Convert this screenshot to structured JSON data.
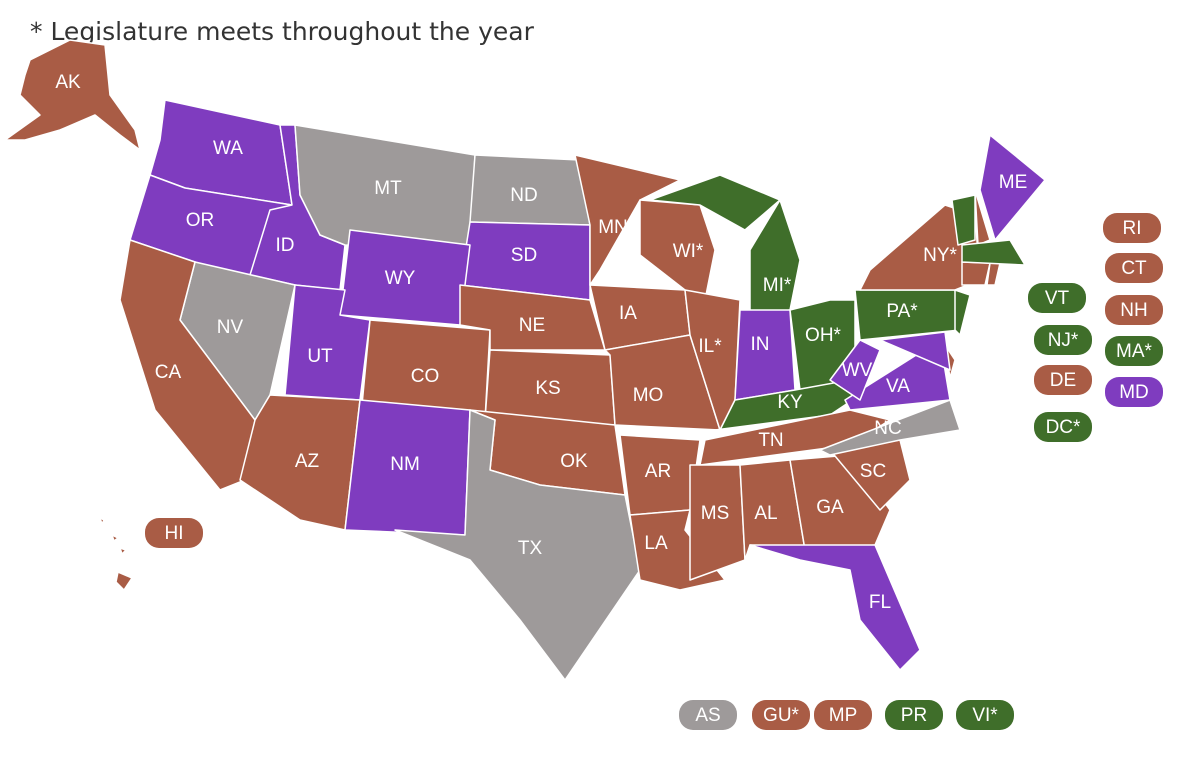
{
  "title": "* Legislature meets throughout the year",
  "states": [
    {
      "label": "AK",
      "color": "#a95c45"
    },
    {
      "label": "WA",
      "color": "#7f3cbf"
    },
    {
      "label": "OR",
      "color": "#7f3cbf"
    },
    {
      "label": "ID",
      "color": "#7f3cbf"
    },
    {
      "label": "MT",
      "color": "#9e9a9a"
    },
    {
      "label": "ND",
      "color": "#9e9a9a"
    },
    {
      "label": "SD",
      "color": "#7f3cbf"
    },
    {
      "label": "WY",
      "color": "#7f3cbf"
    },
    {
      "label": "NV",
      "color": "#9e9a9a"
    },
    {
      "label": "CA",
      "color": "#a95c45"
    },
    {
      "label": "UT",
      "color": "#7f3cbf"
    },
    {
      "label": "CO",
      "color": "#a95c45"
    },
    {
      "label": "AZ",
      "color": "#a95c45"
    },
    {
      "label": "NM",
      "color": "#7f3cbf"
    },
    {
      "label": "NE",
      "color": "#a95c45"
    },
    {
      "label": "KS",
      "color": "#a95c45"
    },
    {
      "label": "OK",
      "color": "#a95c45"
    },
    {
      "label": "TX",
      "color": "#9e9a9a"
    },
    {
      "label": "MN",
      "color": "#a95c45"
    },
    {
      "label": "IA",
      "color": "#a95c45"
    },
    {
      "label": "MO",
      "color": "#a95c45"
    },
    {
      "label": "AR",
      "color": "#a95c45"
    },
    {
      "label": "LA",
      "color": "#a95c45"
    },
    {
      "label": "WI*",
      "color": "#a95c45"
    },
    {
      "label": "IL*",
      "color": "#a95c45"
    },
    {
      "label": "MI*",
      "color": "#3f6e2a"
    },
    {
      "label": "IN",
      "color": "#7f3cbf"
    },
    {
      "label": "OH*",
      "color": "#3f6e2a"
    },
    {
      "label": "KY",
      "color": "#3f6e2a"
    },
    {
      "label": "TN",
      "color": "#a95c45"
    },
    {
      "label": "MS",
      "color": "#a95c45"
    },
    {
      "label": "AL",
      "color": "#a95c45"
    },
    {
      "label": "GA",
      "color": "#a95c45"
    },
    {
      "label": "FL",
      "color": "#7f3cbf"
    },
    {
      "label": "SC",
      "color": "#a95c45"
    },
    {
      "label": "NC",
      "color": "#9e9a9a"
    },
    {
      "label": "VA",
      "color": "#7f3cbf"
    },
    {
      "label": "WV",
      "color": "#7f3cbf"
    },
    {
      "label": "PA*",
      "color": "#3f6e2a"
    },
    {
      "label": "NY*",
      "color": "#a95c45"
    },
    {
      "label": "ME",
      "color": "#7f3cbf"
    }
  ],
  "badges": [
    {
      "label": "RI",
      "color": "#a95c45"
    },
    {
      "label": "CT",
      "color": "#a95c45"
    },
    {
      "label": "VT",
      "color": "#3f6e2a"
    },
    {
      "label": "NH",
      "color": "#a95c45"
    },
    {
      "label": "NJ*",
      "color": "#3f6e2a"
    },
    {
      "label": "MA*",
      "color": "#3f6e2a"
    },
    {
      "label": "DE",
      "color": "#a95c45"
    },
    {
      "label": "MD",
      "color": "#7f3cbf"
    },
    {
      "label": "DC*",
      "color": "#3f6e2a"
    },
    {
      "label": "HI",
      "color": "#a95c45"
    },
    {
      "label": "AS",
      "color": "#9e9a9a"
    },
    {
      "label": "GU*",
      "color": "#a95c45"
    },
    {
      "label": "MP",
      "color": "#a95c45"
    },
    {
      "label": "PR",
      "color": "#3f6e2a"
    },
    {
      "label": "VI*",
      "color": "#3f6e2a"
    }
  ]
}
